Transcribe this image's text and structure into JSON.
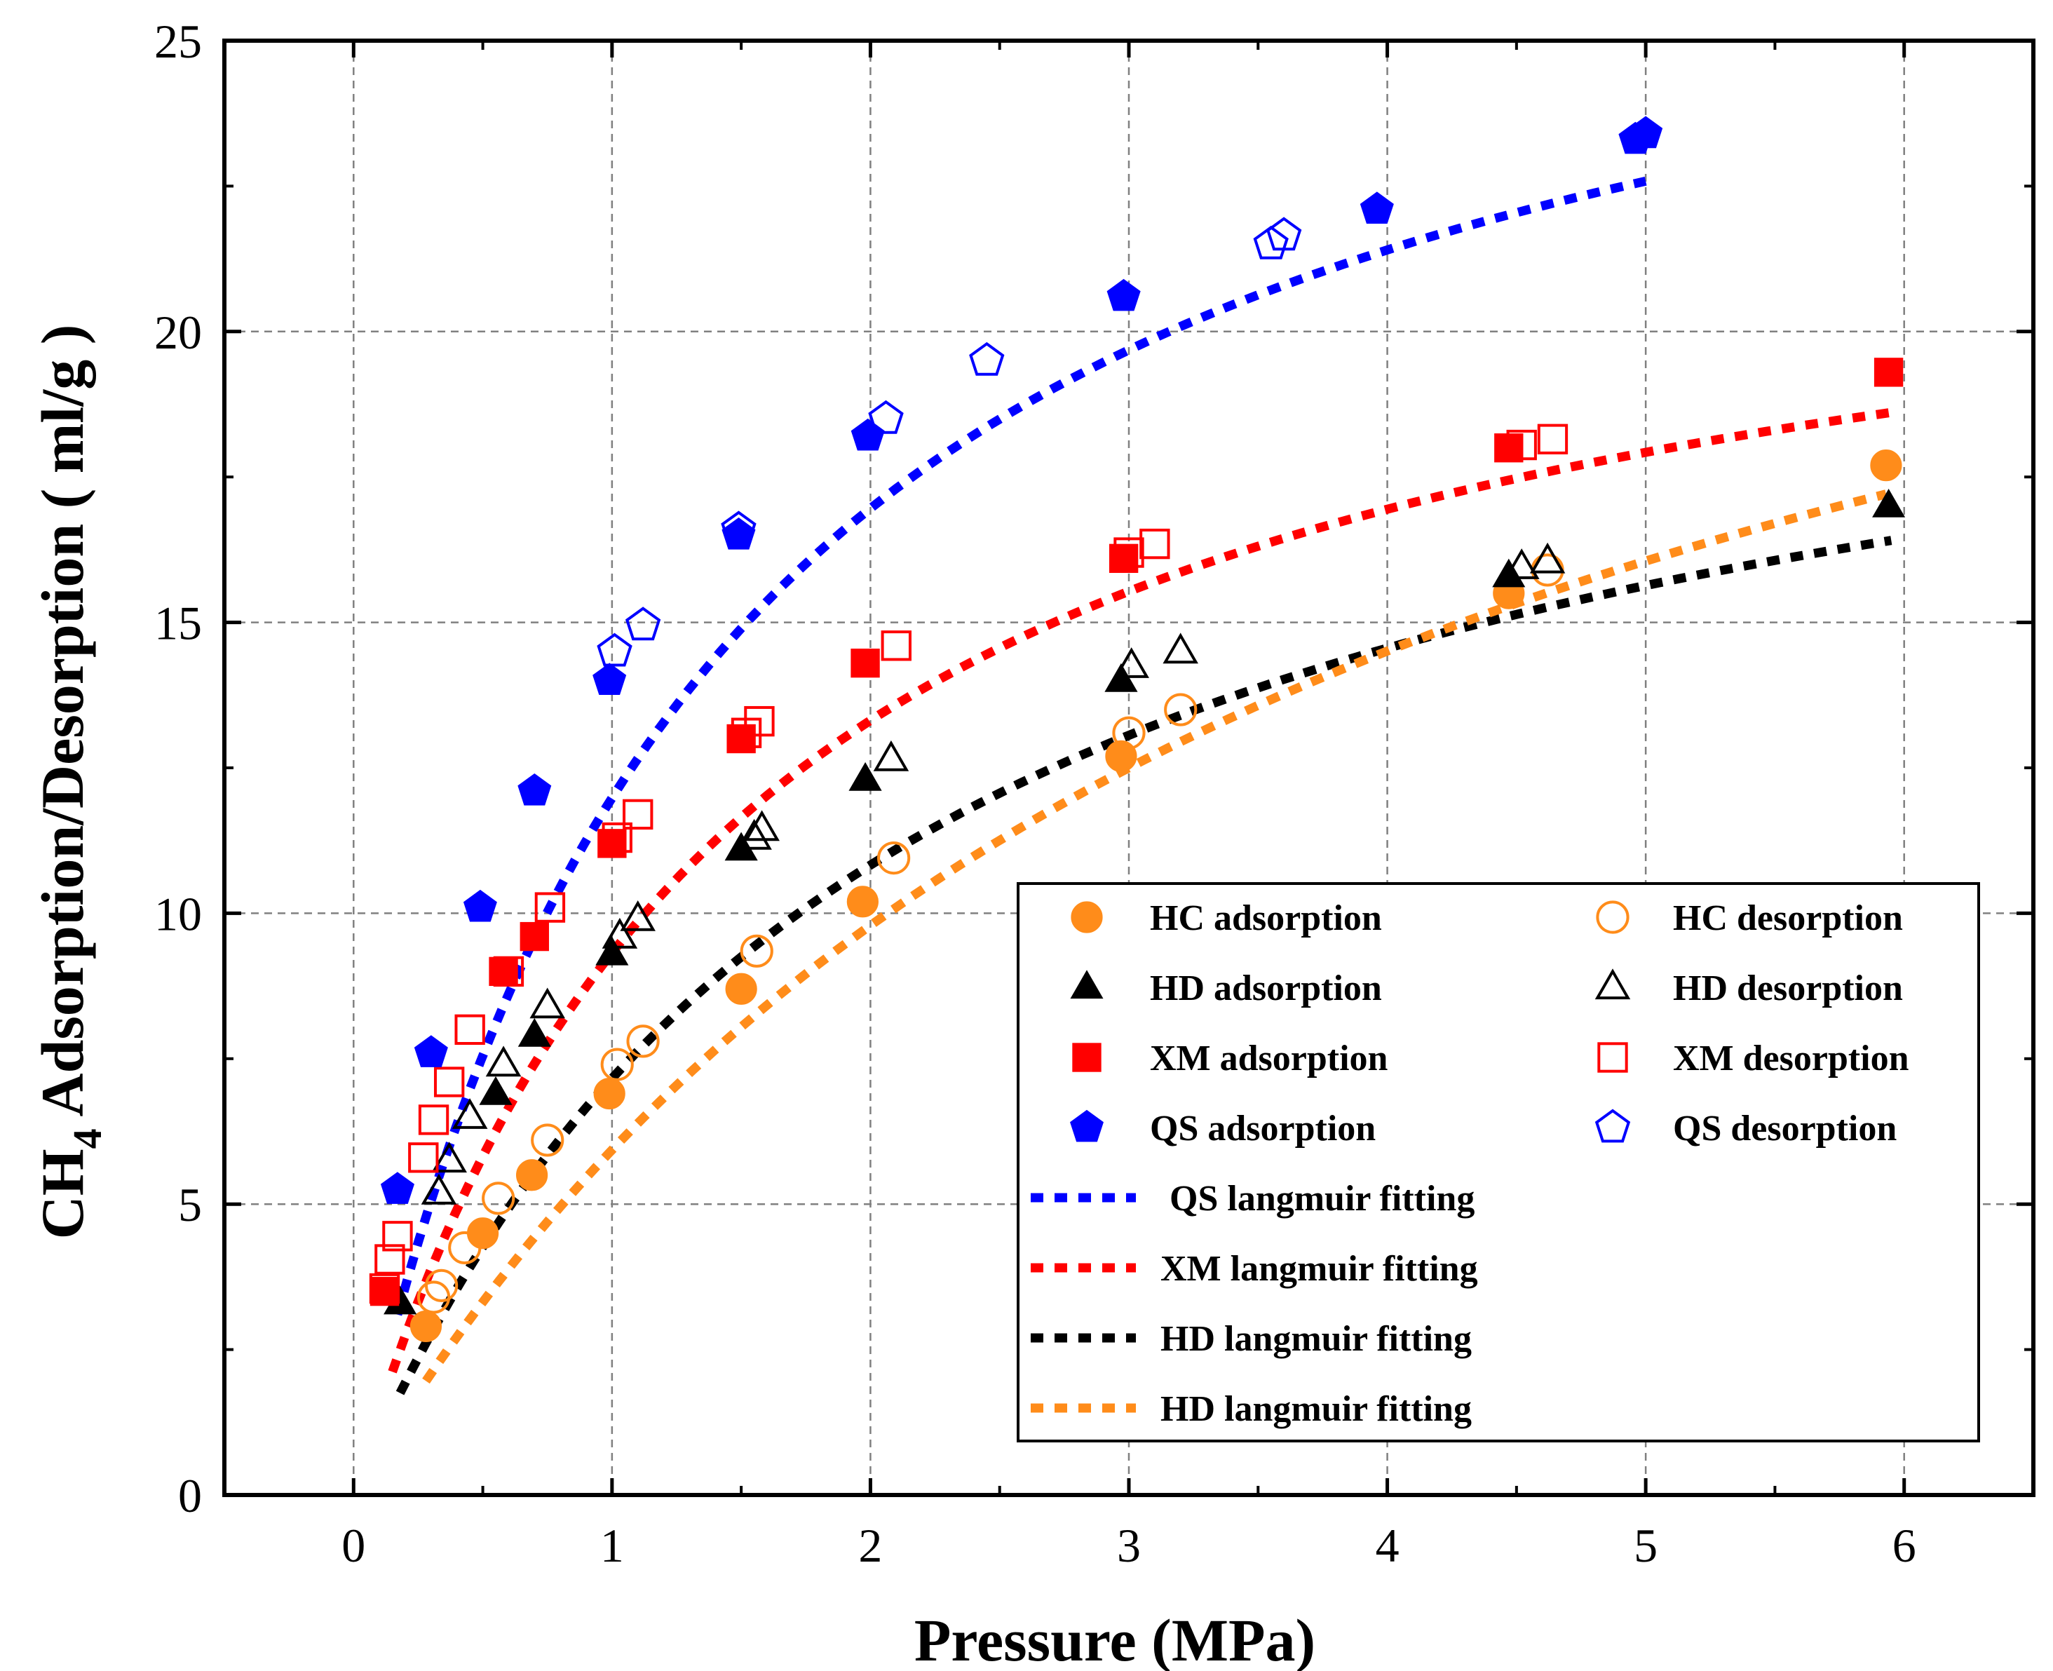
{
  "chart_data": {
    "type": "scatter",
    "xlabel": "Pressure (MPa)",
    "ylabel_main": "CH",
    "ylabel_sub": "4",
    "ylabel_rest": " Adsorption/Desorption ( ml/g )",
    "xlim": [
      -0.5,
      6.5
    ],
    "ylim": [
      0,
      25
    ],
    "xticks": [
      "0",
      "1",
      "2",
      "3",
      "4",
      "5",
      "6"
    ],
    "yticks": [
      "0",
      "5",
      "10",
      "15",
      "20",
      "25"
    ],
    "grid": true,
    "legend_position": "bottom-right",
    "series": [
      {
        "name": "HC adsorption",
        "marker": "circle",
        "filled": true,
        "color": "#FF8C1A",
        "points": [
          [
            0.28,
            2.9
          ],
          [
            0.5,
            4.5
          ],
          [
            0.69,
            5.5
          ],
          [
            0.99,
            6.9
          ],
          [
            1.5,
            8.7
          ],
          [
            1.97,
            10.2
          ],
          [
            2.97,
            12.7
          ],
          [
            4.47,
            15.5
          ],
          [
            5.93,
            17.7
          ]
        ]
      },
      {
        "name": "HC desorption",
        "marker": "circle",
        "filled": false,
        "color": "#FF8C1A",
        "points": [
          [
            0.31,
            3.4
          ],
          [
            0.34,
            3.6
          ],
          [
            0.43,
            4.25
          ],
          [
            0.56,
            5.1
          ],
          [
            0.75,
            6.1
          ],
          [
            1.02,
            7.4
          ],
          [
            1.12,
            7.8
          ],
          [
            1.56,
            9.35
          ],
          [
            2.09,
            10.95
          ],
          [
            3.0,
            13.1
          ],
          [
            3.2,
            13.5
          ],
          [
            4.62,
            15.9
          ]
        ]
      },
      {
        "name": "HD adsorption",
        "marker": "triangle",
        "filled": true,
        "color": "#000000",
        "points": [
          [
            0.18,
            3.3
          ],
          [
            0.55,
            6.9
          ],
          [
            0.7,
            7.9
          ],
          [
            1.0,
            9.3
          ],
          [
            1.5,
            11.1
          ],
          [
            1.98,
            12.3
          ],
          [
            2.97,
            14.0
          ],
          [
            4.47,
            15.8
          ],
          [
            5.94,
            17.0
          ]
        ]
      },
      {
        "name": "HD desorption",
        "marker": "triangle",
        "filled": false,
        "color": "#000000",
        "points": [
          [
            0.33,
            5.2
          ],
          [
            0.37,
            5.75
          ],
          [
            0.45,
            6.5
          ],
          [
            0.58,
            7.4
          ],
          [
            0.75,
            8.4
          ],
          [
            1.03,
            9.6
          ],
          [
            1.1,
            9.9
          ],
          [
            1.55,
            11.3
          ],
          [
            1.58,
            11.45
          ],
          [
            2.08,
            12.65
          ],
          [
            3.01,
            14.25
          ],
          [
            3.2,
            14.5
          ],
          [
            4.52,
            15.95
          ],
          [
            4.62,
            16.05
          ]
        ]
      },
      {
        "name": "XM adsorption",
        "marker": "square",
        "filled": true,
        "color": "#FF0000",
        "points": [
          [
            0.12,
            3.5
          ],
          [
            0.58,
            9.0
          ],
          [
            0.7,
            9.6
          ],
          [
            1.0,
            11.2
          ],
          [
            1.5,
            13.0
          ],
          [
            1.98,
            14.3
          ],
          [
            2.98,
            16.1
          ],
          [
            4.47,
            18.0
          ],
          [
            5.94,
            19.3
          ]
        ]
      },
      {
        "name": "XM desorption",
        "marker": "square",
        "filled": false,
        "color": "#FF0000",
        "points": [
          [
            0.12,
            3.55
          ],
          [
            0.14,
            4.05
          ],
          [
            0.17,
            4.45
          ],
          [
            0.27,
            5.8
          ],
          [
            0.31,
            6.45
          ],
          [
            0.37,
            7.1
          ],
          [
            0.45,
            8.0
          ],
          [
            0.6,
            9.0
          ],
          [
            0.76,
            10.1
          ],
          [
            1.02,
            11.3
          ],
          [
            1.1,
            11.7
          ],
          [
            1.52,
            13.1
          ],
          [
            1.57,
            13.3
          ],
          [
            2.1,
            14.6
          ],
          [
            3.0,
            16.2
          ],
          [
            3.1,
            16.35
          ],
          [
            4.52,
            18.05
          ],
          [
            4.64,
            18.15
          ]
        ]
      },
      {
        "name": "QS adsorption",
        "marker": "pentagon",
        "filled": true,
        "color": "#0000FF",
        "points": [
          [
            0.17,
            5.25
          ],
          [
            0.3,
            7.6
          ],
          [
            0.49,
            10.1
          ],
          [
            0.7,
            12.1
          ],
          [
            0.99,
            14.0
          ],
          [
            1.49,
            16.5
          ],
          [
            1.99,
            18.2
          ],
          [
            2.98,
            20.6
          ],
          [
            3.96,
            22.1
          ],
          [
            4.96,
            23.3
          ],
          [
            5.0,
            23.4
          ]
        ]
      },
      {
        "name": "QS desorption",
        "marker": "pentagon",
        "filled": false,
        "color": "#0000FF",
        "points": [
          [
            1.01,
            14.5
          ],
          [
            1.12,
            14.95
          ],
          [
            1.49,
            16.6
          ],
          [
            2.06,
            18.5
          ],
          [
            2.45,
            19.5
          ],
          [
            3.55,
            21.5
          ],
          [
            3.6,
            21.65
          ]
        ]
      }
    ],
    "fits": [
      {
        "name": "QS langmuir fitting",
        "color": "#0000FF",
        "xrange": [
          0.17,
          5.0
        ],
        "vl": 29.0,
        "pl": 1.42
      },
      {
        "name": "XM langmuir fitting",
        "color": "#FF0000",
        "xrange": [
          0.15,
          5.95
        ],
        "vl": 23.3,
        "pl": 1.5
      },
      {
        "name": "HD langmuir fitting",
        "color": "#000000",
        "xrange": [
          0.18,
          5.95
        ],
        "vl": 22.2,
        "pl": 2.1
      },
      {
        "name": "HD langmuir fitting",
        "color": "#FF8C1A",
        "xrange": [
          0.28,
          5.93
        ],
        "vl": 28.0,
        "pl": 3.72
      }
    ],
    "legend_entries": [
      {
        "label": "HC adsorption",
        "marker": "circle",
        "filled": true,
        "color": "#FF8C1A"
      },
      {
        "label": "HC desorption",
        "marker": "circle",
        "filled": false,
        "color": "#FF8C1A"
      },
      {
        "label": "HD adsorption",
        "marker": "triangle",
        "filled": true,
        "color": "#000000"
      },
      {
        "label": "HD desorption",
        "marker": "triangle",
        "filled": false,
        "color": "#000000"
      },
      {
        "label": "XM adsorption",
        "marker": "square",
        "filled": true,
        "color": "#FF0000"
      },
      {
        "label": "XM desorption",
        "marker": "square",
        "filled": false,
        "color": "#FF0000"
      },
      {
        "label": "QS adsorption",
        "marker": "pentagon",
        "filled": true,
        "color": "#0000FF"
      },
      {
        "label": "QS desorption",
        "marker": "pentagon",
        "filled": false,
        "color": "#0000FF"
      },
      {
        "label": " QS langmuir fitting",
        "line": true,
        "color": "#0000FF"
      },
      {
        "label": "XM langmuir fitting",
        "line": true,
        "color": "#FF0000"
      },
      {
        "label": "HD langmuir fitting",
        "line": true,
        "color": "#000000"
      },
      {
        "label": "HD langmuir fitting",
        "line": true,
        "color": "#FF8C1A"
      }
    ]
  }
}
